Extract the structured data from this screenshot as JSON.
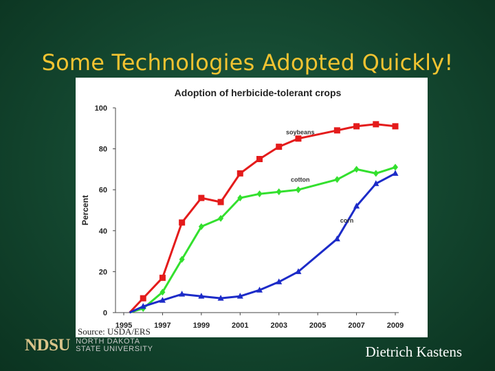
{
  "slide": {
    "title": "Some  Technologies Adopted Quickly!",
    "source": "Source:  USDA/ERS",
    "logo_word": "NDSU",
    "logo_line1": "NORTH DAKOTA",
    "logo_line2": "STATE UNIVERSITY",
    "author": "Dietrich Kastens"
  },
  "chart_data": {
    "type": "line",
    "title": "Adoption of herbicide-tolerant crops",
    "xlabel": "",
    "ylabel": "Percent",
    "x": [
      1996,
      1997,
      1998,
      1999,
      2000,
      2001,
      2002,
      2003,
      2004,
      2006,
      2007,
      2008,
      2009
    ],
    "xlim": [
      1995,
      2009
    ],
    "ylim": [
      0,
      100
    ],
    "xticks": [
      "1995",
      "1997",
      "1999",
      "2001",
      "2003",
      "2005",
      "2007",
      "2009"
    ],
    "yticks": [
      "0",
      "20",
      "40",
      "60",
      "80",
      "100"
    ],
    "grid": false,
    "series": [
      {
        "name": "soybeans",
        "color": "#e41b1b",
        "marker": "square",
        "values": [
          7,
          17,
          44,
          56,
          54,
          68,
          75,
          81,
          85,
          89,
          91,
          92,
          91
        ]
      },
      {
        "name": "cotton",
        "color": "#33e02e",
        "marker": "diamond",
        "values": [
          2,
          10,
          26,
          42,
          46,
          56,
          58,
          59,
          60,
          65,
          70,
          68,
          71
        ]
      },
      {
        "name": "corn",
        "color": "#1c2bc8",
        "marker": "triangle",
        "values": [
          3,
          6,
          9,
          8,
          7,
          8,
          11,
          15,
          20,
          36,
          52,
          63,
          68
        ]
      }
    ],
    "series_origin": 1995.3
  }
}
